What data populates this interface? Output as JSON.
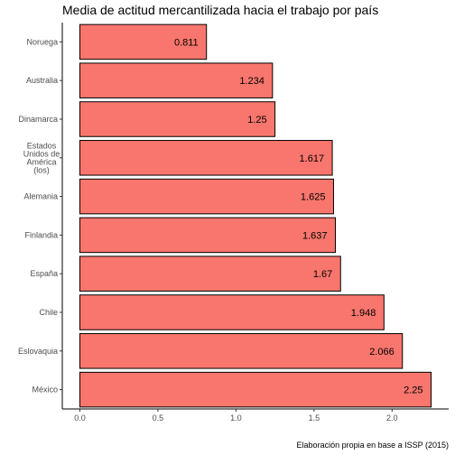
{
  "chart_data": {
    "type": "bar",
    "orientation": "horizontal",
    "title": "Media de actitud mercantilizada hacia el trabajo por país",
    "caption": "Elaboración propia en base a ISSP (2015)",
    "categories": [
      "Noruega",
      "Australia",
      "Dinamarca",
      "Estados Unidos de América (los)",
      "Alemania",
      "Finlandia",
      "España",
      "Chile",
      "Eslovaquia",
      "México"
    ],
    "category_lines": [
      [
        "Noruega"
      ],
      [
        "Australia"
      ],
      [
        "Dinamarca"
      ],
      [
        "Estados",
        "Unidos de",
        "América",
        "(los)"
      ],
      [
        "Alemania"
      ],
      [
        "Finlandia"
      ],
      [
        "España"
      ],
      [
        "Chile"
      ],
      [
        "Eslovaquia"
      ],
      [
        "México"
      ]
    ],
    "values": [
      0.811,
      1.234,
      1.25,
      1.617,
      1.625,
      1.637,
      1.67,
      1.948,
      2.066,
      2.25
    ],
    "value_labels": [
      "0.811",
      "1.234",
      "1.25",
      "1.617",
      "1.625",
      "1.637",
      "1.67",
      "1.948",
      "2.066",
      "2.25"
    ],
    "x_ticks": [
      "0.0",
      "0.5",
      "1.0",
      "1.5",
      "2.0"
    ],
    "x_tick_values": [
      0,
      0.5,
      1.0,
      1.5,
      2.0
    ],
    "xlim": [
      -0.1125,
      2.3625
    ],
    "xlabel": "",
    "ylabel": "",
    "bar_color": "#F8766D",
    "bar_border": "#000000",
    "grid": false
  }
}
